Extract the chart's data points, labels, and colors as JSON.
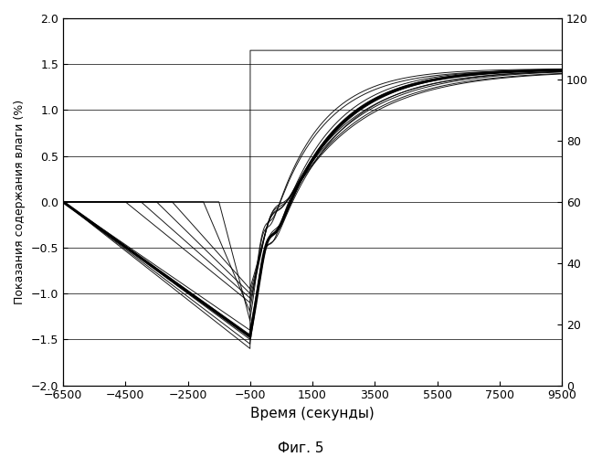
{
  "title": "",
  "xlabel": "Время (секунды)",
  "ylabel": "Показания содержания влаги (%)",
  "fig_caption": "Фиг. 5",
  "xlim": [
    -6500,
    9500
  ],
  "ylim_left": [
    -2.0,
    2.0
  ],
  "ylim_right": [
    0,
    120
  ],
  "xticks": [
    -6500,
    -4500,
    -2500,
    -500,
    1500,
    3500,
    5500,
    7500,
    9500
  ],
  "yticks_left": [
    -2.0,
    -1.5,
    -1.0,
    -0.5,
    0.0,
    0.5,
    1.0,
    1.5,
    2.0
  ],
  "yticks_right": [
    0,
    20,
    40,
    60,
    80,
    100,
    120
  ],
  "background_color": "#ffffff"
}
